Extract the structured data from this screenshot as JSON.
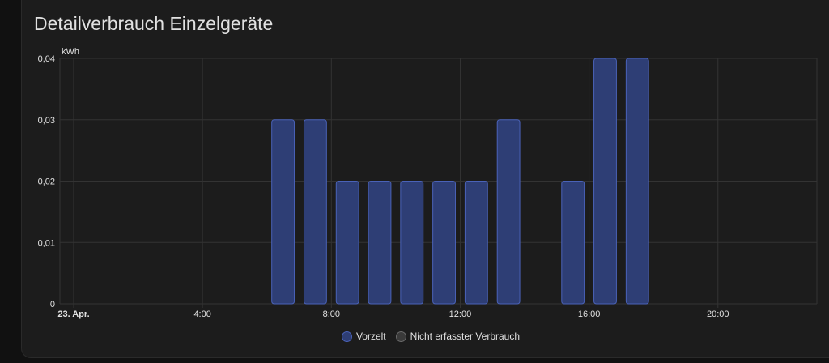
{
  "card": {
    "title": "Detailverbrauch Einzelgeräte"
  },
  "colors": {
    "bar_fill": "#2e3e75",
    "bar_stroke": "#4a62b8",
    "grid": "#333333",
    "text": "#e1e1e1",
    "legend_other_fill": "#3a3a3a",
    "legend_other_stroke": "#6a6a6a"
  },
  "chart_data": {
    "type": "bar",
    "ylabel": "kWh",
    "ylim": [
      0,
      0.04
    ],
    "yticks": [
      {
        "value": 0,
        "label": "0"
      },
      {
        "value": 0.01,
        "label": "0,01"
      },
      {
        "value": 0.02,
        "label": "0,02"
      },
      {
        "value": 0.03,
        "label": "0,03"
      },
      {
        "value": 0.04,
        "label": "0,04"
      }
    ],
    "xlim": [
      0,
      23.5
    ],
    "xticks": [
      {
        "value": 0,
        "label": "23. Apr.",
        "bold": true
      },
      {
        "value": 4,
        "label": "4:00"
      },
      {
        "value": 8,
        "label": "8:00"
      },
      {
        "value": 12,
        "label": "12:00"
      },
      {
        "value": 16,
        "label": "16:00"
      },
      {
        "value": 20,
        "label": "20:00"
      }
    ],
    "grid": true,
    "legend_position": "bottom-center",
    "series": [
      {
        "name": "Vorzelt",
        "points": [
          {
            "hour": 6,
            "value": 0.03
          },
          {
            "hour": 7,
            "value": 0.03
          },
          {
            "hour": 8,
            "value": 0.02
          },
          {
            "hour": 9,
            "value": 0.02
          },
          {
            "hour": 10,
            "value": 0.02
          },
          {
            "hour": 11,
            "value": 0.02
          },
          {
            "hour": 12,
            "value": 0.02
          },
          {
            "hour": 13,
            "value": 0.03
          },
          {
            "hour": 15,
            "value": 0.02
          },
          {
            "hour": 16,
            "value": 0.04
          },
          {
            "hour": 17,
            "value": 0.04
          }
        ]
      },
      {
        "name": "Nicht erfasster Verbrauch",
        "points": []
      }
    ]
  }
}
